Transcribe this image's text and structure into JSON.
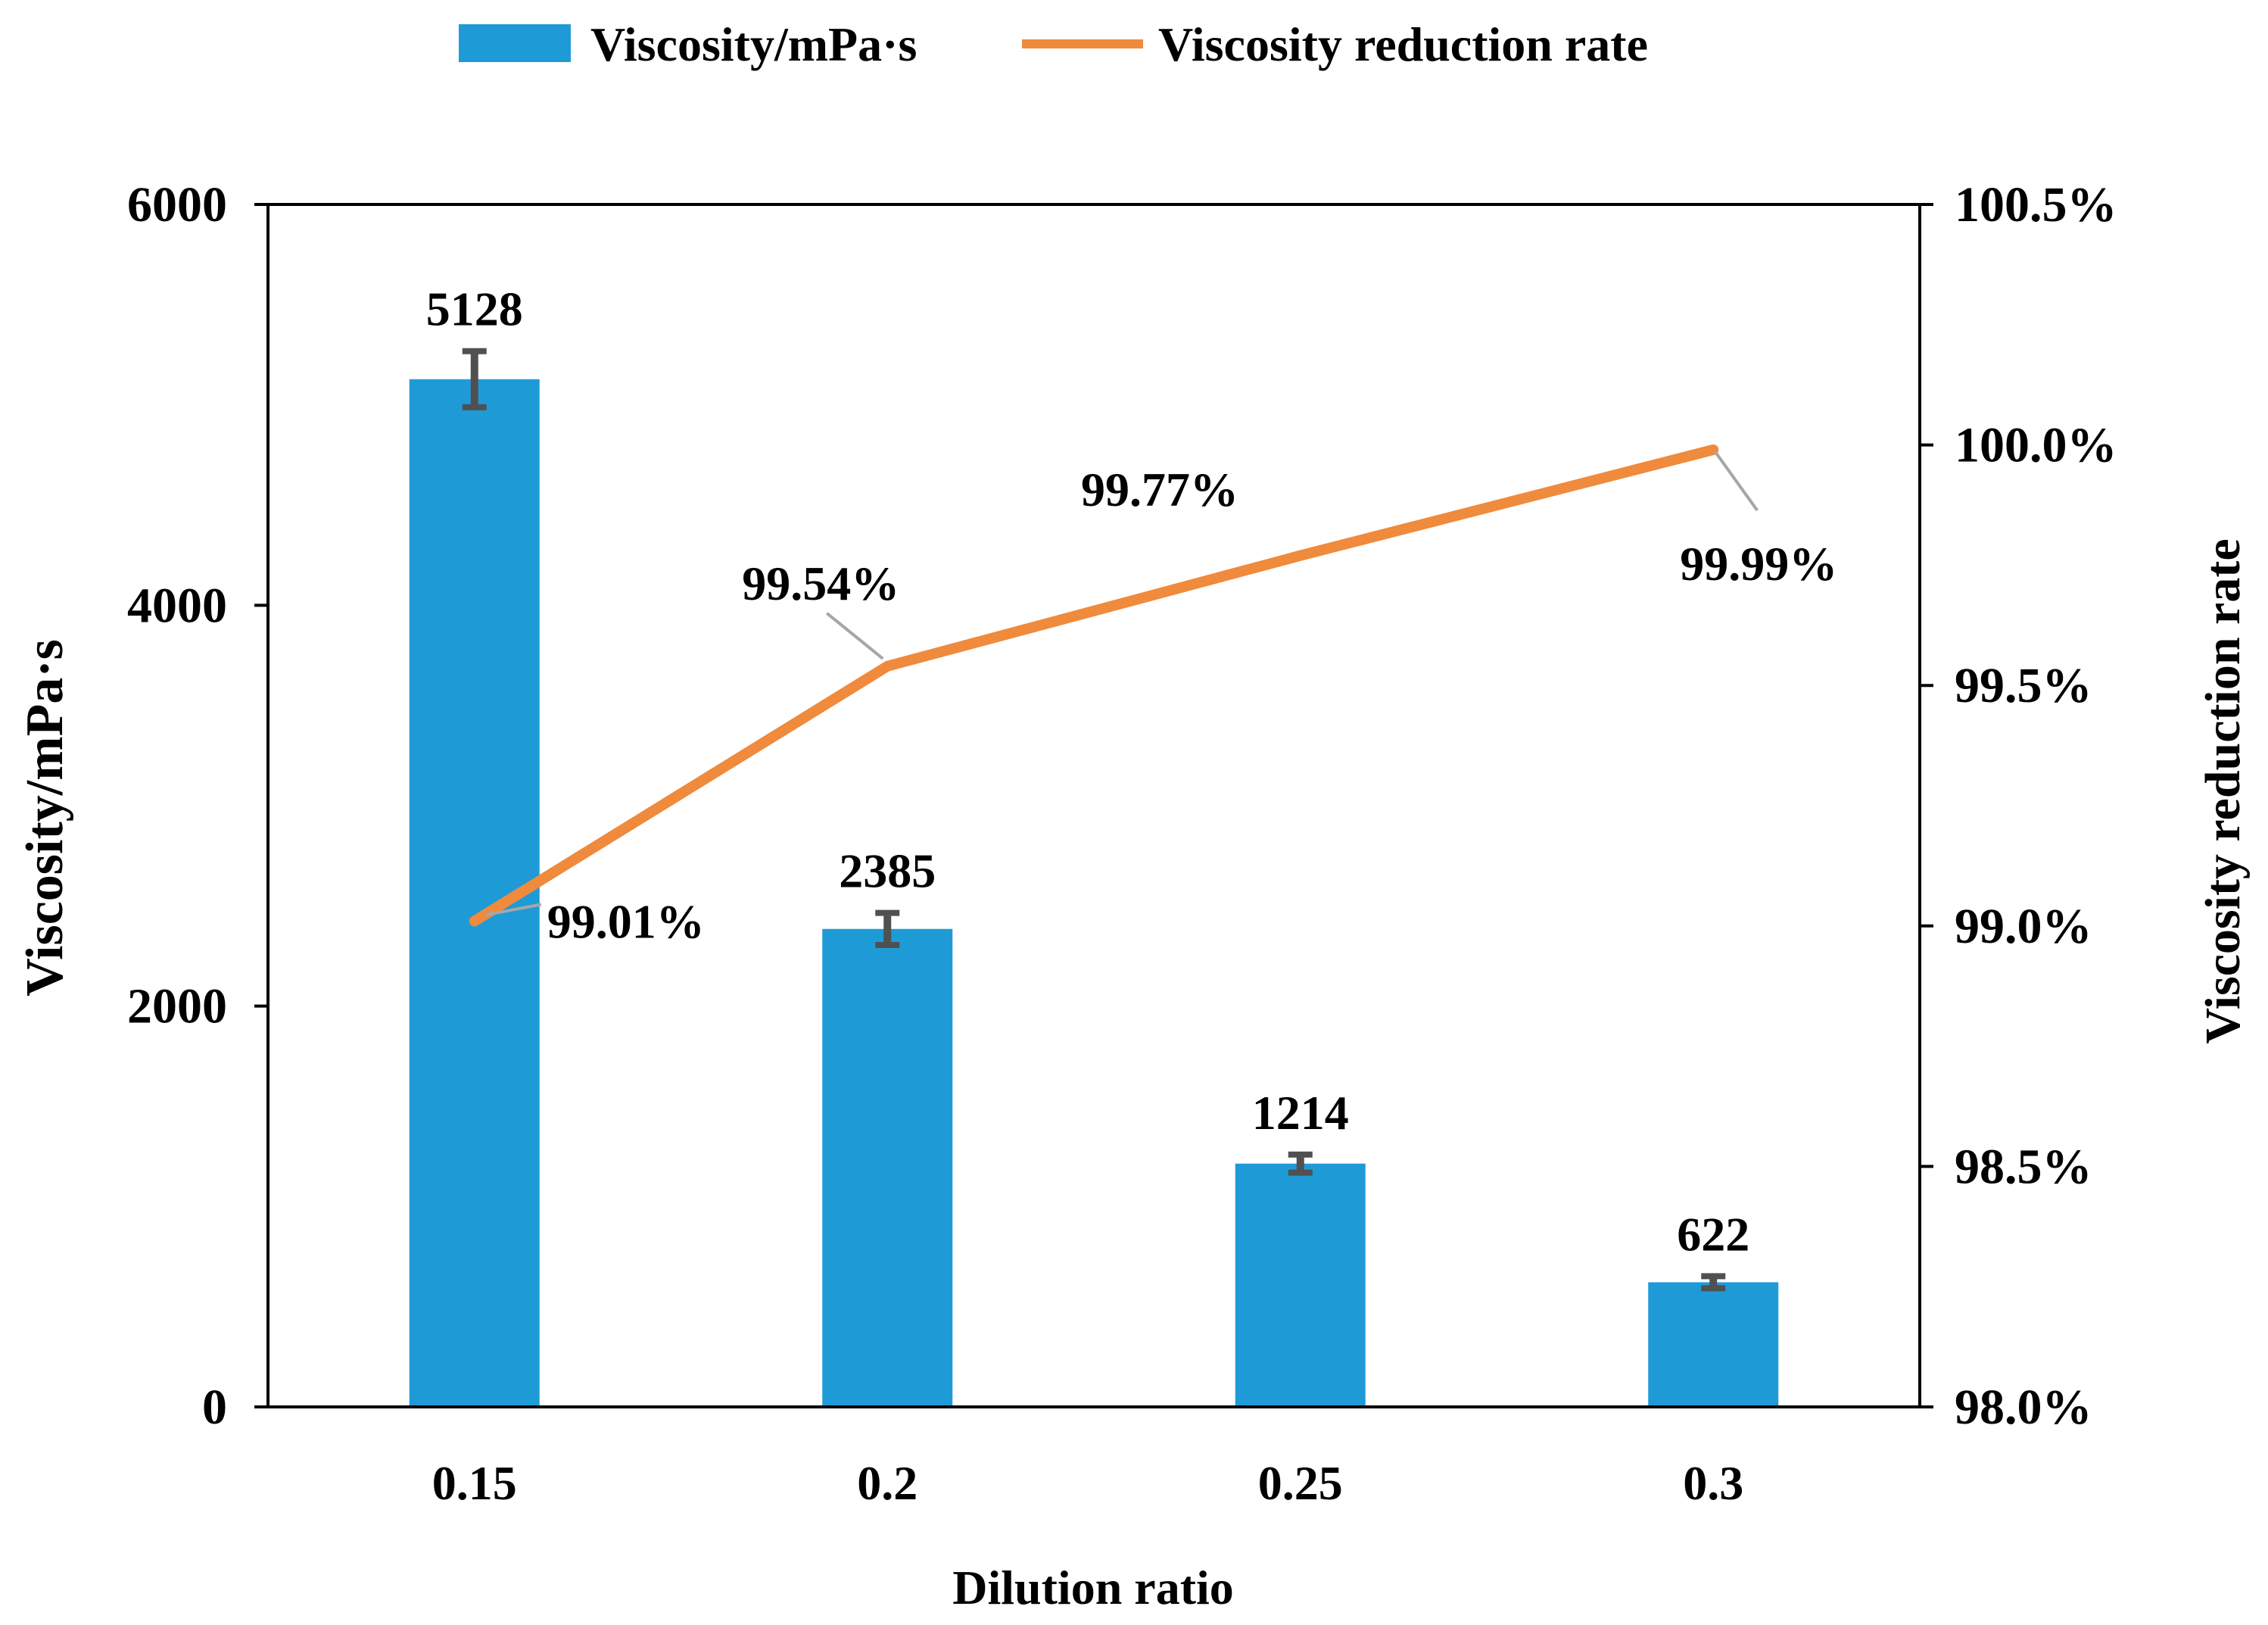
{
  "chart_data": {
    "type": "bar",
    "categories": [
      "0.15",
      "0.2",
      "0.25",
      "0.3"
    ],
    "series": [
      {
        "name": "Viscosity/mPa·s",
        "type": "bar",
        "axis": "left",
        "values": [
          5128,
          2385,
          1214,
          622
        ],
        "errors": [
          140,
          80,
          45,
          30
        ],
        "labels": [
          "5128",
          "2385",
          "1214",
          "622"
        ]
      },
      {
        "name": "Viscosity reduction rate",
        "type": "line",
        "axis": "right",
        "values": [
          99.01,
          99.54,
          99.77,
          99.99
        ],
        "labels": [
          "99.01%",
          "99.54%",
          "99.77%",
          "99.99%"
        ]
      }
    ],
    "xlabel": "Dilution ratio",
    "ylabel": "Viscosity/mPa·s",
    "y2label": "Viscosity reduction rate",
    "ylim": [
      0,
      6000
    ],
    "yticks": [
      "0",
      "2000",
      "4000",
      "6000"
    ],
    "y2lim": [
      98.0,
      100.5
    ],
    "y2ticks": [
      "98.0%",
      "98.5%",
      "99.0%",
      "99.5%",
      "100.0%",
      "100.5%"
    ],
    "legend": [
      "Viscosity/mPa·s",
      "Viscosity reduction rate"
    ],
    "legend_position": "top-center",
    "grid": false,
    "colors": {
      "bar": "#1e9bd7",
      "line": "#f08a3c",
      "error": "#505050",
      "leader": "#a6a6a6",
      "text": "#000000"
    }
  }
}
